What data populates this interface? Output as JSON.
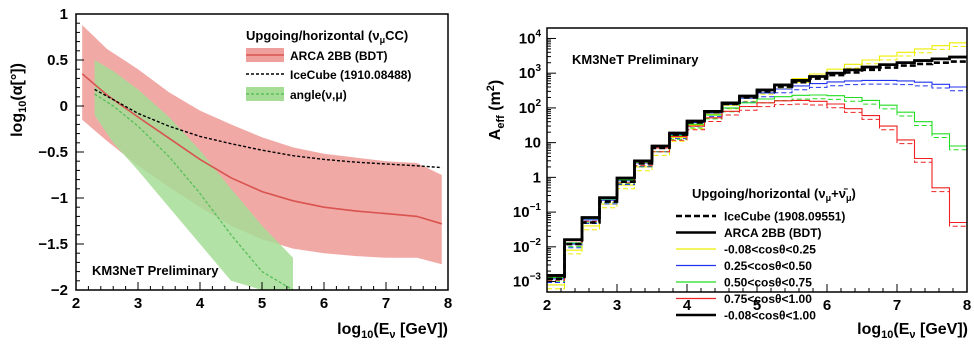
{
  "chart_data": [
    {
      "type": "line",
      "ylabel": "log10(α[°])",
      "xlabel": "log10(Eν [GeV])",
      "xlim": [
        2,
        8
      ],
      "ylim": [
        -2,
        1
      ],
      "xticks": [
        "2",
        "3",
        "4",
        "5",
        "6",
        "7",
        "8"
      ],
      "yticks": [
        "1",
        "0.5",
        "0",
        "−0.5",
        "−1",
        "−1.5",
        "−2"
      ],
      "legend_title": "Upgoing/horizontal (νμCC)",
      "legend_position": "top-right",
      "annotation": "KM3NeT Preliminary",
      "colors": {
        "arca": "#d9534f",
        "arca_band": "#f0a09c",
        "angle": "#5cc05c",
        "angle_band": "#a6dd96",
        "icecube": "#000000"
      },
      "series": [
        {
          "name": "ARCA 2BB (BDT)",
          "x": [
            2.1,
            2.5,
            3.0,
            3.5,
            4.0,
            4.5,
            5.0,
            5.5,
            6.0,
            6.5,
            7.0,
            7.5,
            7.9
          ],
          "y": [
            0.35,
            0.12,
            -0.12,
            -0.35,
            -0.58,
            -0.78,
            -0.93,
            -1.03,
            -1.1,
            -1.14,
            -1.17,
            -1.2,
            -1.28
          ],
          "band_upper": [
            0.88,
            0.62,
            0.4,
            0.15,
            -0.05,
            -0.2,
            -0.34,
            -0.45,
            -0.52,
            -0.56,
            -0.6,
            -0.62,
            -0.75
          ],
          "band_lower": [
            -0.15,
            -0.38,
            -0.65,
            -0.88,
            -1.1,
            -1.3,
            -1.45,
            -1.55,
            -1.6,
            -1.63,
            -1.65,
            -1.65,
            -1.72
          ]
        },
        {
          "name": "IceCube (1910.08488)",
          "x": [
            2.3,
            2.6,
            3.0,
            3.5,
            4.0,
            4.5,
            5.0,
            5.5,
            6.0,
            6.5,
            7.0,
            7.5,
            7.9
          ],
          "y": [
            0.18,
            0.07,
            -0.08,
            -0.22,
            -0.33,
            -0.41,
            -0.48,
            -0.54,
            -0.58,
            -0.61,
            -0.63,
            -0.65,
            -0.67
          ]
        },
        {
          "name": "angle(ν,μ)",
          "x": [
            2.3,
            2.6,
            3.0,
            3.5,
            4.0,
            4.5,
            5.0,
            5.5
          ],
          "y": [
            0.13,
            0.0,
            -0.22,
            -0.55,
            -0.95,
            -1.4,
            -1.8,
            -2.0
          ],
          "band_upper": [
            0.5,
            0.38,
            0.18,
            -0.12,
            -0.48,
            -0.9,
            -1.3,
            -1.65
          ],
          "band_lower": [
            -0.1,
            -0.4,
            -0.7,
            -1.1,
            -1.5,
            -1.9,
            -2.0,
            -2.0
          ]
        }
      ]
    },
    {
      "type": "line",
      "ylabel": "Aeff (m²)",
      "xlabel": "log10(Eν [GeV])",
      "xlim": [
        2,
        8
      ],
      "ylim": [
        0.0005,
        20000
      ],
      "yscale": "log",
      "xticks": [
        "2",
        "3",
        "4",
        "5",
        "6",
        "7",
        "8"
      ],
      "yticks": [
        {
          "base": "10",
          "exp": "4",
          "value": 10000
        },
        {
          "base": "10",
          "exp": "3",
          "value": 1000
        },
        {
          "base": "10",
          "exp": "2",
          "value": 100
        },
        {
          "base": "10",
          "exp": "",
          "value": 10
        },
        {
          "base": "1",
          "exp": "",
          "value": 1
        },
        {
          "base": "10",
          "exp": "−1",
          "value": 0.1
        },
        {
          "base": "10",
          "exp": "−2",
          "value": 0.01
        },
        {
          "base": "10",
          "exp": "−3",
          "value": 0.001
        }
      ],
      "legend_title": "Upgoing/horizontal (νμ+ν̄μ)",
      "legend_position": "bottom-right",
      "annotation": "KM3NeT Preliminary",
      "x": [
        2.0,
        2.25,
        2.5,
        2.75,
        3.0,
        3.25,
        3.5,
        3.75,
        4.0,
        4.25,
        4.5,
        4.75,
        5.0,
        5.25,
        5.5,
        5.75,
        6.0,
        6.25,
        6.5,
        6.75,
        7.0,
        7.25,
        7.5,
        7.75
      ],
      "series": [
        {
          "name": "IceCube (1908.09551)",
          "color": "#000000",
          "style": "dashed-thick",
          "values": [
            0.0012,
            0.012,
            0.05,
            0.2,
            0.75,
            2.5,
            7,
            17,
            38,
            75,
            130,
            200,
            300,
            410,
            550,
            700,
            880,
            1050,
            1250,
            1450,
            1650,
            1850,
            2000,
            2150
          ]
        },
        {
          "name": "ARCA 2BB (BDT)",
          "color": "#000000",
          "style": "solid-thick",
          "values": [
            0.0015,
            0.016,
            0.07,
            0.26,
            0.95,
            3.0,
            8,
            19,
            42,
            80,
            140,
            220,
            330,
            460,
            620,
            800,
            1000,
            1250,
            1500,
            1750,
            2000,
            2300,
            2600,
            2900
          ]
        },
        {
          "name": "-0.08<cosθ<0.25",
          "color": "#eded00",
          "style": "solid",
          "values": [
            0.0008,
            0.008,
            0.04,
            0.17,
            0.6,
            2.0,
            5.5,
            14,
            32,
            65,
            120,
            200,
            320,
            480,
            700,
            950,
            1300,
            1800,
            2400,
            3100,
            4000,
            5000,
            6200,
            7500
          ]
        },
        {
          "name": "0.25<cosθ<0.50",
          "color": "#2233ee",
          "style": "solid",
          "values": [
            0.0012,
            0.012,
            0.06,
            0.22,
            0.8,
            2.6,
            7,
            17,
            38,
            72,
            125,
            190,
            270,
            350,
            430,
            500,
            560,
            600,
            620,
            620,
            600,
            550,
            480,
            400
          ]
        },
        {
          "name": "0.50<cosθ<0.75",
          "color": "#22dd22",
          "style": "solid",
          "values": [
            0.0013,
            0.013,
            0.065,
            0.24,
            0.85,
            2.7,
            7,
            16,
            34,
            62,
            100,
            140,
            180,
            210,
            230,
            235,
            225,
            200,
            165,
            120,
            75,
            40,
            18,
            8
          ]
        },
        {
          "name": "0.75<cosθ<1.00",
          "color": "#ee2222",
          "style": "solid",
          "values": [
            0.0014,
            0.015,
            0.07,
            0.25,
            0.9,
            2.8,
            7,
            15,
            30,
            52,
            80,
            110,
            140,
            160,
            165,
            155,
            130,
            95,
            60,
            30,
            12,
            3.5,
            0.5,
            0.05
          ]
        },
        {
          "name": "-0.08<cosθ<1.00",
          "color": "#000000",
          "style": "solid-thick",
          "values": [
            0.0015,
            0.016,
            0.07,
            0.26,
            0.95,
            3.0,
            8,
            19,
            42,
            80,
            140,
            220,
            330,
            460,
            620,
            800,
            1000,
            1250,
            1500,
            1750,
            2000,
            2300,
            2600,
            2900
          ]
        }
      ]
    }
  ]
}
